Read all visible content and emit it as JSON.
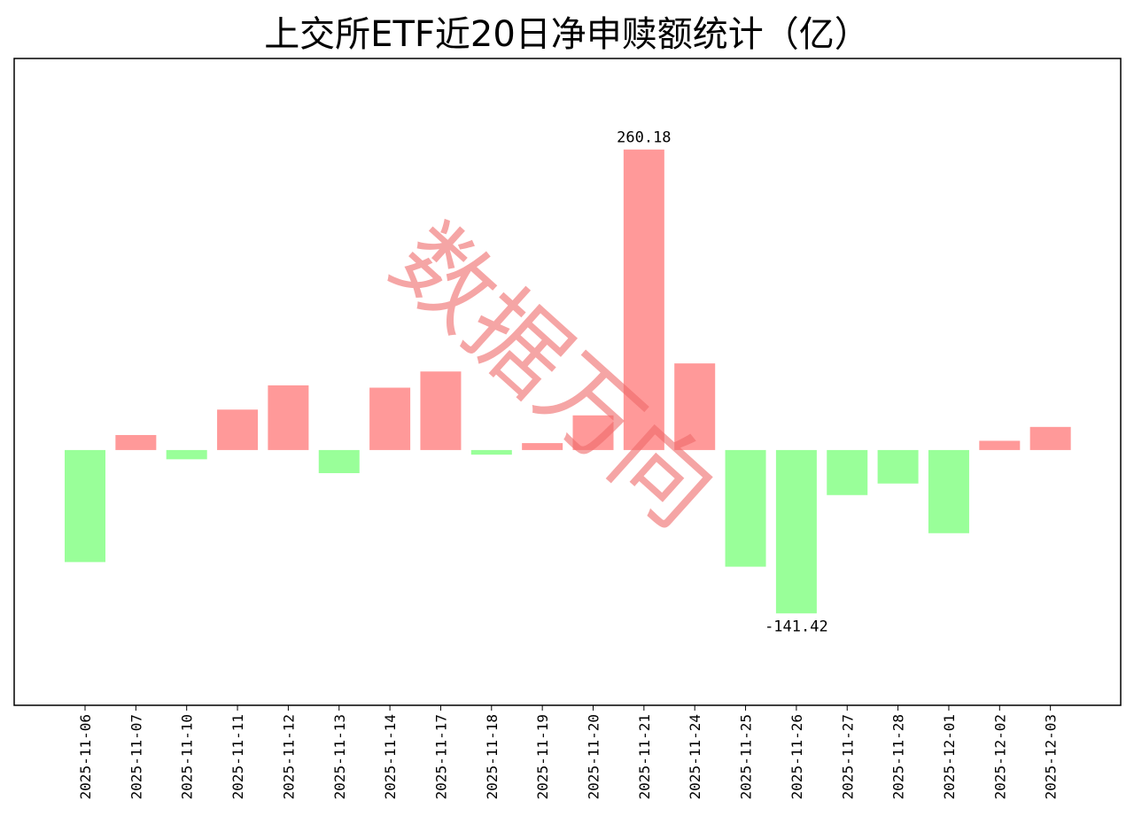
{
  "chart_data": {
    "type": "bar",
    "title": "上交所ETF近20日净申赎额统计（亿）",
    "xlabel": "",
    "ylabel": "",
    "categories": [
      "2025-11-06",
      "2025-11-07",
      "2025-11-10",
      "2025-11-11",
      "2025-11-12",
      "2025-11-13",
      "2025-11-14",
      "2025-11-17",
      "2025-11-18",
      "2025-11-19",
      "2025-11-20",
      "2025-11-21",
      "2025-11-24",
      "2025-11-25",
      "2025-11-26",
      "2025-11-27",
      "2025-11-28",
      "2025-12-01",
      "2025-12-02",
      "2025-12-03"
    ],
    "values": [
      -97,
      13,
      -8,
      35,
      56,
      -20,
      54,
      68,
      -4,
      6,
      30,
      260.18,
      75,
      -101,
      -141.42,
      -39,
      -29,
      -72,
      8,
      20
    ],
    "data_labels": [
      {
        "category": "2025-11-21",
        "text": "260.18"
      },
      {
        "category": "2025-11-26",
        "text": "-141.42"
      }
    ],
    "ylim": [
      -221,
      339
    ],
    "y_ticks_shown": false,
    "grid": false,
    "legend": "none",
    "colors": {
      "positive": "#ff9999",
      "negative": "#99ff99",
      "axes": "#000000"
    }
  },
  "watermark": {
    "text": "数据万向"
  }
}
